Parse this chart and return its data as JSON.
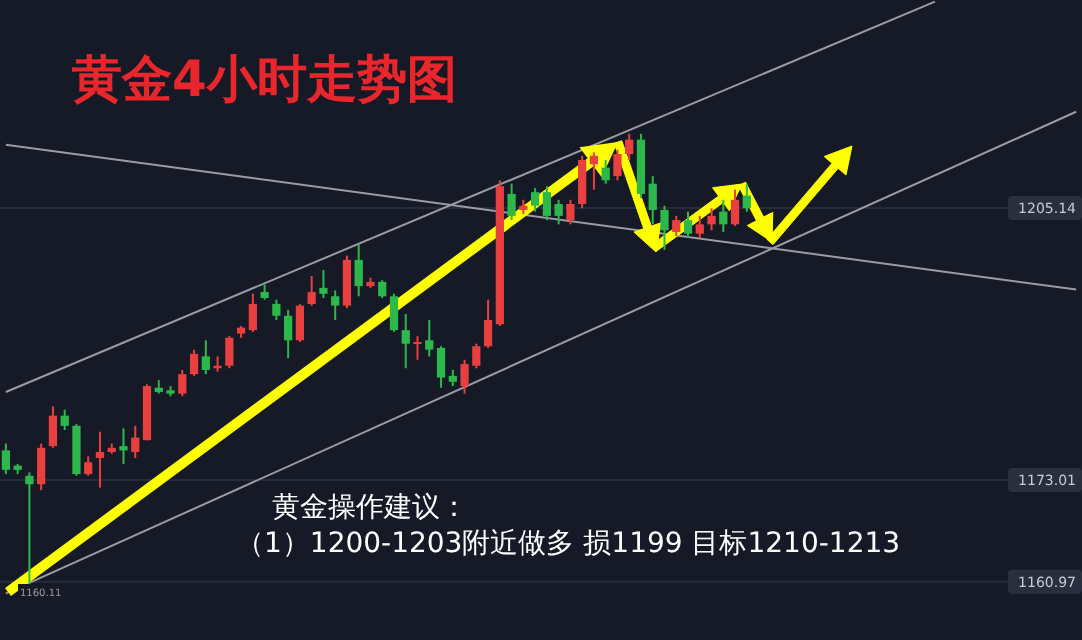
{
  "chart_data": {
    "type": "candlestick",
    "title": "黄金4小时走势图",
    "categories": [
      null,
      null,
      null,
      null,
      null,
      null,
      null,
      null,
      null,
      null,
      null,
      null,
      null,
      null,
      null,
      null,
      null,
      null,
      null,
      null,
      null,
      null,
      null,
      null,
      null,
      null,
      null,
      null,
      null,
      null,
      null,
      null,
      null,
      null,
      null,
      null,
      null,
      null,
      null,
      null,
      null,
      null,
      null,
      null,
      null,
      null,
      null,
      null,
      null,
      null,
      null,
      null,
      null,
      null,
      null,
      null,
      null,
      null,
      null,
      null,
      null,
      null,
      null,
      null,
      null,
      null,
      null,
      null,
      null,
      null,
      null,
      null,
      null,
      null,
      null,
      null,
      null,
      null,
      null,
      null,
      null,
      null,
      null,
      null,
      null,
      null,
      null,
      null,
      null,
      null,
      null,
      null
    ],
    "ohlc": [
      [
        1176.5,
        1177.3,
        1173.7,
        1174.2
      ],
      [
        1174.7,
        1174.9,
        1173.7,
        1174.2
      ],
      [
        1173.5,
        1173.9,
        1160.1,
        1172.5
      ],
      [
        1172.5,
        1177.3,
        1171.8,
        1176.8
      ],
      [
        1177.0,
        1181.7,
        1176.8,
        1180.6
      ],
      [
        1180.6,
        1181.3,
        1178.9,
        1179.4
      ],
      [
        1179.4,
        1179.6,
        1173.5,
        1173.7
      ],
      [
        1173.7,
        1175.8,
        1173.5,
        1175.1
      ],
      [
        1175.6,
        1178.7,
        1172.1,
        1176.3
      ],
      [
        1176.3,
        1177.3,
        1176.1,
        1176.8
      ],
      [
        1177.0,
        1179.1,
        1174.9,
        1176.5
      ],
      [
        1176.3,
        1179.4,
        1175.6,
        1178.0
      ],
      [
        1177.7,
        1184.3,
        1177.7,
        1184.1
      ],
      [
        1183.9,
        1184.8,
        1183.2,
        1183.4
      ],
      [
        1183.6,
        1184.1,
        1182.9,
        1183.2
      ],
      [
        1183.2,
        1186.0,
        1182.9,
        1185.5
      ],
      [
        1185.5,
        1188.4,
        1185.3,
        1187.9
      ],
      [
        1187.6,
        1189.5,
        1185.5,
        1186.0
      ],
      [
        1186.2,
        1187.6,
        1185.8,
        1186.5
      ],
      [
        1186.5,
        1190.0,
        1186.2,
        1189.8
      ],
      [
        1190.3,
        1191.2,
        1189.8,
        1191.0
      ],
      [
        1190.7,
        1195.0,
        1190.5,
        1193.8
      ],
      [
        1195.2,
        1196.1,
        1194.3,
        1194.5
      ],
      [
        1193.8,
        1194.3,
        1191.9,
        1192.4
      ],
      [
        1192.4,
        1193.1,
        1187.4,
        1189.5
      ],
      [
        1189.5,
        1193.8,
        1189.3,
        1193.6
      ],
      [
        1193.8,
        1197.1,
        1193.6,
        1195.2
      ],
      [
        1195.7,
        1197.8,
        1194.5,
        1195.0
      ],
      [
        1194.7,
        1195.4,
        1191.9,
        1193.6
      ],
      [
        1193.6,
        1199.5,
        1193.3,
        1199.0
      ],
      [
        1199.0,
        1200.9,
        1194.7,
        1195.9
      ],
      [
        1195.9,
        1196.9,
        1195.7,
        1196.4
      ],
      [
        1196.4,
        1196.6,
        1194.5,
        1194.7
      ],
      [
        1194.7,
        1195.0,
        1190.5,
        1190.7
      ],
      [
        1190.7,
        1192.6,
        1186.2,
        1189.1
      ],
      [
        1189.1,
        1190.0,
        1187.2,
        1189.3
      ],
      [
        1189.5,
        1191.9,
        1187.6,
        1188.4
      ],
      [
        1188.6,
        1188.8,
        1183.9,
        1185.1
      ],
      [
        1185.3,
        1186.0,
        1184.1,
        1184.6
      ],
      [
        1184.1,
        1187.2,
        1183.2,
        1186.7
      ],
      [
        1186.5,
        1189.1,
        1186.2,
        1188.8
      ],
      [
        1188.8,
        1194.3,
        1188.6,
        1191.9
      ],
      [
        1191.4,
        1208.4,
        1191.2,
        1207.7
      ],
      [
        1206.8,
        1208.0,
        1203.7,
        1204.2
      ],
      [
        1204.9,
        1206.1,
        1204.4,
        1205.4
      ],
      [
        1207.0,
        1207.5,
        1204.7,
        1205.4
      ],
      [
        1207.0,
        1207.7,
        1203.7,
        1204.2
      ],
      [
        1205.6,
        1206.1,
        1203.2,
        1204.2
      ],
      [
        1203.7,
        1206.1,
        1203.2,
        1205.6
      ],
      [
        1205.6,
        1211.3,
        1205.1,
        1210.8
      ],
      [
        1210.3,
        1211.7,
        1207.3,
        1211.3
      ],
      [
        1209.9,
        1210.8,
        1208.0,
        1208.4
      ],
      [
        1208.9,
        1212.0,
        1208.4,
        1211.5
      ],
      [
        1211.5,
        1213.9,
        1210.8,
        1213.2
      ],
      [
        1213.2,
        1213.9,
        1206.3,
        1206.8
      ],
      [
        1208.0,
        1208.9,
        1203.2,
        1204.9
      ],
      [
        1204.9,
        1205.4,
        1200.2,
        1202.5
      ],
      [
        1202.3,
        1204.2,
        1201.8,
        1203.7
      ],
      [
        1203.7,
        1204.7,
        1201.6,
        1202.1
      ],
      [
        1202.1,
        1204.2,
        1201.6,
        1203.2
      ],
      [
        1203.2,
        1205.1,
        1202.5,
        1204.2
      ],
      [
        1204.7,
        1206.1,
        1202.3,
        1203.2
      ],
      [
        1203.2,
        1207.3,
        1203.0,
        1206.1
      ],
      [
        1206.6,
        1208.0,
        1204.7,
        1205.1
      ],
      null,
      null,
      null,
      null,
      null,
      null,
      null,
      null,
      null,
      null,
      null,
      null,
      null,
      null,
      null,
      null,
      null,
      null,
      null,
      null,
      null,
      null,
      null,
      null,
      null,
      null,
      null,
      null
    ],
    "colors": [
      "#2db84c",
      "#2db84c",
      "#2db84c",
      "#e8403f",
      "#e8403f",
      "#2db84c",
      "#2db84c",
      "#e8403f",
      "#e8403f",
      "#e8403f",
      "#2db84c",
      "#e8403f",
      "#e8403f",
      "#2db84c",
      "#2db84c",
      "#e8403f",
      "#e8403f",
      "#2db84c",
      "#e8403f",
      "#e8403f",
      "#e8403f",
      "#e8403f",
      "#2db84c",
      "#2db84c",
      "#2db84c",
      "#e8403f",
      "#e8403f",
      "#2db84c",
      "#2db84c",
      "#e8403f",
      "#2db84c",
      "#e8403f",
      "#2db84c",
      "#2db84c",
      "#2db84c",
      "#e8403f",
      "#2db84c",
      "#2db84c",
      "#2db84c",
      "#e8403f",
      "#e8403f",
      "#e8403f",
      "#e8403f",
      "#2db84c",
      "#e8403f",
      "#2db84c",
      "#2db84c",
      "#2db84c",
      "#e8403f",
      "#e8403f",
      "#e8403f",
      "#2db84c",
      "#e8403f",
      "#e8403f",
      "#2db84c",
      "#2db84c",
      "#2db84c",
      "#e8403f",
      "#2db84c",
      "#e8403f",
      "#e8403f",
      "#2db84c",
      "#e8403f",
      "#2db84c",
      null,
      null,
      null,
      null,
      null,
      null,
      null,
      null,
      null,
      null,
      null,
      null,
      null,
      null,
      null,
      null,
      null,
      null,
      null,
      null,
      null,
      null,
      null,
      null,
      null,
      null,
      null,
      null
    ],
    "series": [
      {
        "type": "line",
        "color": "#9a9ca4",
        "values": [
          1183.4,
          null,
          null,
          null,
          null,
          null,
          null,
          null,
          null,
          null,
          null,
          null,
          null,
          null,
          null,
          null,
          null,
          null,
          null,
          null,
          null,
          null,
          null,
          null,
          null,
          null,
          null,
          null,
          null,
          null,
          null,
          null,
          null,
          null,
          null,
          null,
          null,
          null,
          null,
          null,
          null,
          null,
          null,
          null,
          null,
          null,
          null,
          null,
          null,
          null,
          null,
          null,
          null,
          null,
          null,
          null,
          null,
          null,
          null,
          null,
          null,
          null,
          null,
          null,
          null,
          null,
          null,
          null,
          null,
          null,
          null,
          null,
          null,
          null,
          null,
          null,
          null,
          null,
          null,
          1229.5,
          null,
          null,
          null,
          null,
          null,
          null,
          null,
          null,
          null,
          null,
          null,
          null
        ]
      },
      {
        "type": "line",
        "color": "#9a9ca4",
        "values": [
          1159.6,
          null,
          null,
          null,
          null,
          null,
          null,
          null,
          null,
          null,
          null,
          null,
          null,
          null,
          null,
          null,
          null,
          null,
          null,
          null,
          null,
          null,
          null,
          null,
          null,
          null,
          null,
          null,
          null,
          null,
          null,
          null,
          null,
          null,
          null,
          null,
          null,
          null,
          null,
          null,
          null,
          null,
          null,
          null,
          null,
          null,
          null,
          null,
          null,
          null,
          null,
          null,
          null,
          null,
          null,
          null,
          null,
          null,
          null,
          null,
          null,
          null,
          null,
          null,
          null,
          null,
          null,
          null,
          null,
          null,
          null,
          null,
          null,
          null,
          null,
          null,
          null,
          null,
          null,
          null,
          null,
          null,
          null,
          null,
          null,
          null,
          null,
          null,
          null,
          null,
          null,
          1216.5
        ]
      },
      {
        "type": "line",
        "color": "#9a9ca4",
        "values": [
          1212.6,
          null,
          null,
          null,
          null,
          null,
          null,
          null,
          null,
          null,
          null,
          null,
          null,
          null,
          null,
          null,
          null,
          null,
          null,
          null,
          null,
          null,
          null,
          null,
          null,
          null,
          null,
          null,
          null,
          null,
          null,
          null,
          null,
          null,
          null,
          null,
          null,
          null,
          null,
          null,
          null,
          null,
          null,
          null,
          null,
          null,
          null,
          null,
          null,
          null,
          null,
          null,
          null,
          null,
          null,
          null,
          null,
          null,
          null,
          null,
          null,
          null,
          null,
          null,
          null,
          null,
          null,
          null,
          null,
          null,
          null,
          null,
          null,
          null,
          null,
          null,
          null,
          null,
          null,
          null,
          null,
          null,
          null,
          null,
          null,
          null,
          null,
          null,
          null,
          null,
          null,
          1195.5
        ]
      }
    ],
    "ylim": [
      1154.1,
      1229.7
    ],
    "yticks": [
      {
        "value": 1205.14,
        "label": "1205.14"
      },
      {
        "value": 1173.01,
        "label": "1173.01"
      },
      {
        "value": 1160.97,
        "label": "1160.97"
      }
    ],
    "grid": "y",
    "annotations": [
      "1160.11",
      "黄金操作建议：",
      "（1）1200-1203附近做多  损1199  目标1210-1213"
    ]
  }
}
